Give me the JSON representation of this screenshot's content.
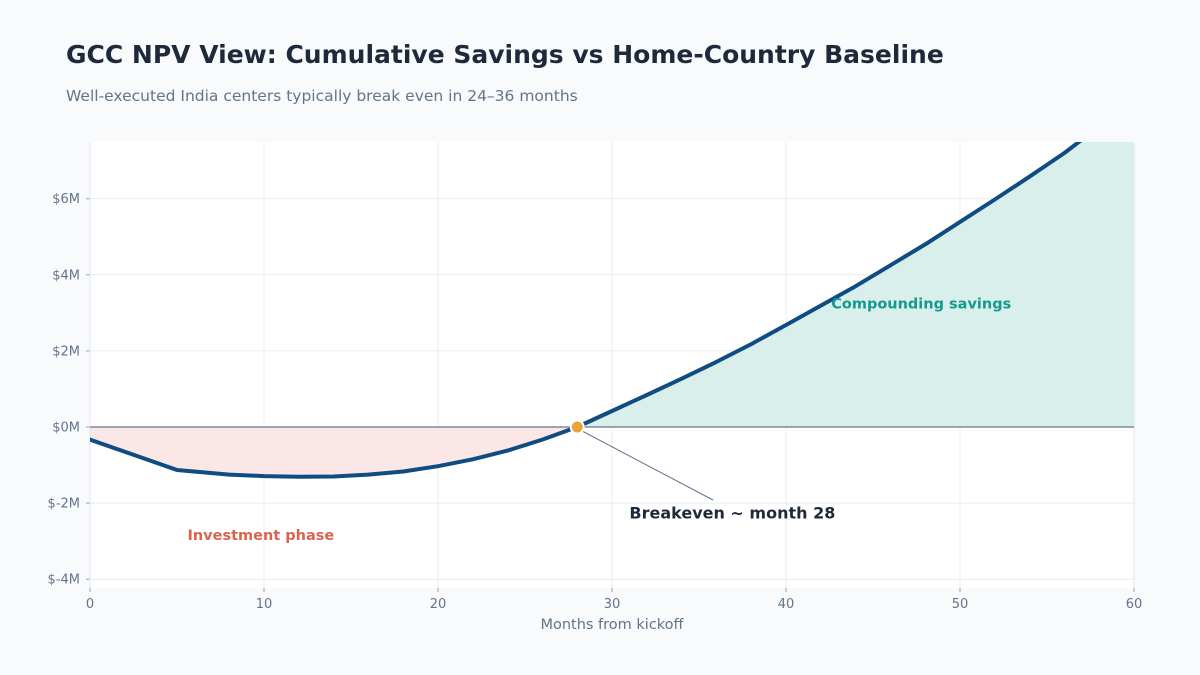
{
  "header": {
    "title": "GCC NPV View: Cumulative Savings vs Home-Country Baseline",
    "subtitle": "Well-executed India centers typically break even in 24–36 months"
  },
  "chart_data": {
    "type": "area",
    "title": "GCC NPV View: Cumulative Savings vs Home-Country Baseline",
    "subtitle": "Well-executed India centers typically break even in 24–36 months",
    "xlabel": "Months from kickoff",
    "ylabel": "",
    "xlim": [
      0,
      60
    ],
    "ylim": [
      -4,
      7.5
    ],
    "x_ticks": [
      0,
      10,
      20,
      30,
      40,
      50,
      60
    ],
    "y_ticks": [
      -4,
      -2,
      0,
      2,
      4,
      6
    ],
    "y_tick_labels": [
      "$-4M",
      "$-2M",
      "$0M",
      "$2M",
      "$4M",
      "$6M"
    ],
    "grid": true,
    "series": [
      {
        "x": [
          0,
          5,
          8,
          10,
          12,
          14,
          16,
          18,
          20,
          22,
          24,
          26,
          28,
          30,
          32,
          34,
          36,
          38,
          40,
          42,
          44,
          46,
          48,
          50,
          52,
          54,
          56,
          57
        ],
        "y": [
          -0.33,
          -1.13,
          -1.25,
          -1.29,
          -1.31,
          -1.3,
          -1.25,
          -1.17,
          -1.03,
          -0.85,
          -0.62,
          -0.33,
          0,
          0.42,
          0.84,
          1.27,
          1.71,
          2.18,
          2.68,
          3.19,
          3.7,
          4.25,
          4.8,
          5.39,
          5.98,
          6.58,
          7.2,
          7.55
        ]
      }
    ],
    "breakeven": {
      "x": 28,
      "y": 0
    },
    "annotations": [
      {
        "text": "Breakeven ~ month 28",
        "x": 31,
        "y": -2.25
      },
      {
        "text": "Compounding savings",
        "x": 42.6,
        "y": 3.25
      },
      {
        "text": "Investment phase",
        "x": 5.6,
        "y": -2.95
      }
    ],
    "colors": {
      "line": "#0f4c81",
      "negative_fill": "#fbe7e6",
      "positive_fill": "#d8efec",
      "investment_text": "#d9634e",
      "savings_text": "#14998c",
      "breakeven_marker": "#e8a33a",
      "zero_line": "#64748b",
      "grid": "#e8ecf1"
    }
  }
}
